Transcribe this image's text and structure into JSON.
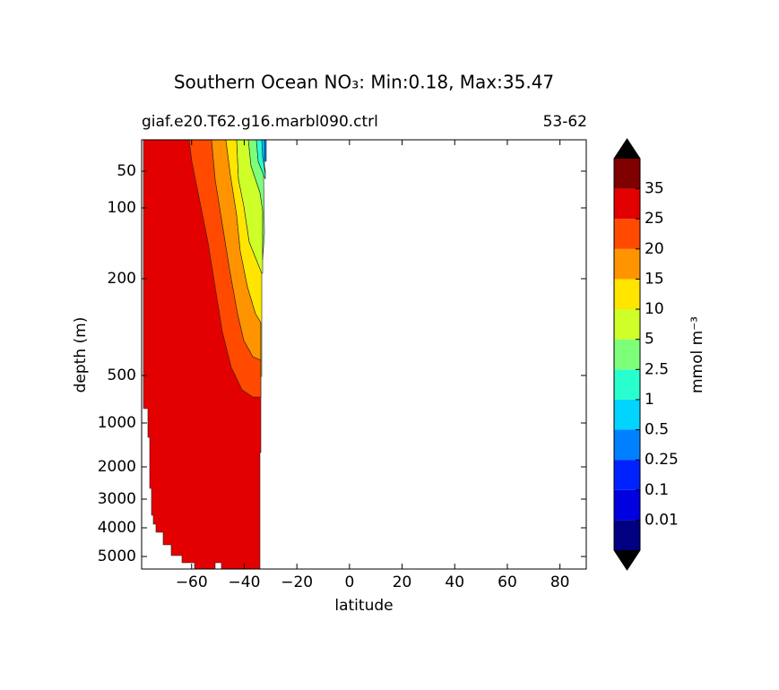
{
  "chart_data": {
    "type": "contour",
    "title": "Southern Ocean NO₃: Min:0.18, Max:35.47",
    "subtitle_left": "giaf.e20.T62.g16.marbl090.ctrl",
    "subtitle_right": "53-62",
    "xlabel": "latitude",
    "ylabel": "depth (m)",
    "xlim": [
      -79,
      90
    ],
    "xticks": [
      {
        "value": -60,
        "label": "−60"
      },
      {
        "value": -40,
        "label": "−40"
      },
      {
        "value": -20,
        "label": "−20"
      },
      0,
      20,
      40,
      60,
      80
    ],
    "ylim": [
      0,
      5500
    ],
    "y_inverted": true,
    "yticks": [
      50,
      100,
      200,
      500,
      1000,
      2000,
      3000,
      4000,
      5000
    ],
    "colorbar": {
      "label": "mmol m⁻³",
      "ticks": [
        0.01,
        0.1,
        0.25,
        0.5,
        1,
        2.5,
        5,
        10,
        15,
        20,
        25,
        35
      ],
      "colors": [
        "#000080",
        "#0000e0",
        "#0022ff",
        "#0080ff",
        "#00d4ff",
        "#29ffce",
        "#7dff7a",
        "#ceff29",
        "#ffe500",
        "#ff9400",
        "#ff4a00",
        "#e30000",
        "#800000"
      ],
      "extend_color": "#000000"
    }
  }
}
